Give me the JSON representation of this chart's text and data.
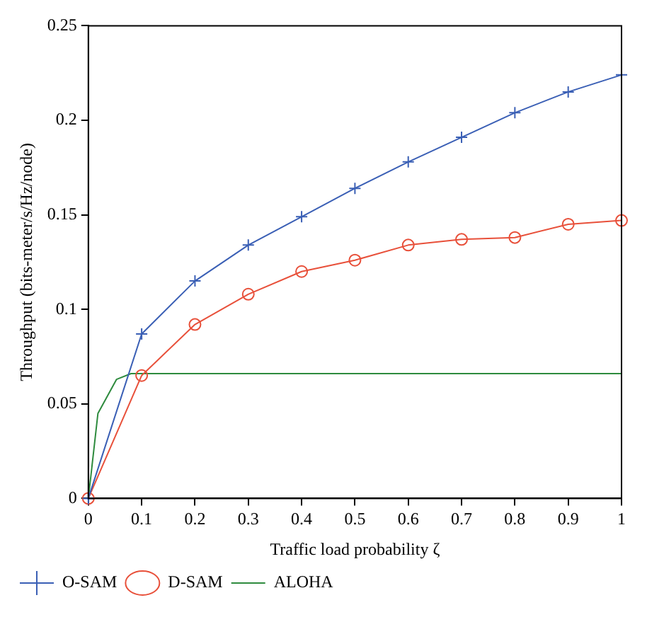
{
  "chart_data": {
    "type": "line",
    "xlabel": "Traffic load probability ζ",
    "ylabel": "Throughput (bits-meter/s/Hz/node)",
    "xlim": [
      0,
      1
    ],
    "xticks": [
      0,
      0.1,
      0.2,
      0.3,
      0.4,
      0.5,
      0.6,
      0.7,
      0.8,
      0.9,
      1
    ],
    "ylim": [
      0,
      0.25
    ],
    "yticks": [
      0,
      0.05,
      0.1,
      0.15,
      0.2,
      0.25
    ],
    "grid": false,
    "legend": "bottom left",
    "line_style": "solid",
    "series": [
      {
        "name": "O-SAM",
        "color": "#3a5fb5",
        "marker": "cross",
        "x": [
          0,
          0.1,
          0.2,
          0.3,
          0.4,
          0.5,
          0.6,
          0.7,
          0.8,
          0.9,
          1
        ],
        "values": [
          0,
          0.087,
          0.115,
          0.134,
          0.149,
          0.164,
          0.178,
          0.191,
          0.204,
          0.215,
          0.224
        ]
      },
      {
        "name": "D-SAM",
        "color": "#e8503a",
        "marker": "circle",
        "x": [
          0,
          0.1,
          0.2,
          0.3,
          0.4,
          0.5,
          0.6,
          0.7,
          0.8,
          0.9,
          1
        ],
        "values": [
          0,
          0.065,
          0.092,
          0.108,
          0.12,
          0.126,
          0.134,
          0.137,
          0.138,
          0.145,
          0.147
        ]
      },
      {
        "name": "ALOHA",
        "color": "#2e8b3e",
        "marker": "none",
        "x": [
          0,
          0.018,
          0.053,
          0.08,
          1
        ],
        "values": [
          0,
          0.045,
          0.063,
          0.066,
          0.066
        ]
      }
    ]
  }
}
